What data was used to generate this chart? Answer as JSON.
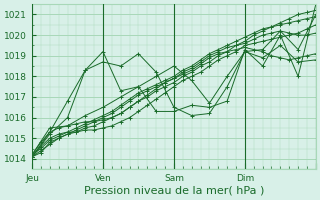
{
  "title": "",
  "xlabel": "Pression niveau de la mer( hPa )",
  "ylabel": "",
  "ylim": [
    1013.5,
    1021.5
  ],
  "xlim": [
    0,
    96
  ],
  "yticks": [
    1014,
    1015,
    1016,
    1017,
    1018,
    1019,
    1020,
    1021
  ],
  "xtick_positions": [
    0,
    24,
    48,
    72,
    96
  ],
  "xtick_labels": [
    "Jeu",
    "Ven",
    "Sam",
    "Dim",
    ""
  ],
  "bg_color": "#d8f0e8",
  "grid_color": "#a8d8b8",
  "line_color": "#1a6b2a",
  "marker_color": "#1a6b2a",
  "series": [
    {
      "x": [
        0,
        3,
        6,
        9,
        12,
        15,
        18,
        21,
        24,
        27,
        30,
        33,
        36,
        39,
        42,
        45,
        48,
        51,
        54,
        57,
        60,
        63,
        66,
        69,
        72,
        75,
        78,
        81,
        84,
        87,
        90,
        93,
        96
      ],
      "y": [
        1014.1,
        1014.3,
        1014.8,
        1015.0,
        1015.2,
        1015.3,
        1015.5,
        1015.6,
        1015.8,
        1016.0,
        1016.2,
        1016.5,
        1016.8,
        1017.0,
        1017.3,
        1017.5,
        1017.7,
        1018.0,
        1018.2,
        1018.5,
        1018.7,
        1019.0,
        1019.2,
        1019.5,
        1019.7,
        1020.0,
        1020.2,
        1020.4,
        1020.6,
        1020.8,
        1021.0,
        1021.1,
        1021.2
      ]
    },
    {
      "x": [
        0,
        3,
        6,
        9,
        12,
        15,
        18,
        21,
        24,
        27,
        30,
        33,
        36,
        39,
        42,
        45,
        48,
        51,
        54,
        57,
        60,
        63,
        66,
        69,
        72,
        75,
        78,
        81,
        84,
        87,
        90,
        93,
        96
      ],
      "y": [
        1014.2,
        1014.5,
        1014.9,
        1015.1,
        1015.3,
        1015.5,
        1015.7,
        1015.9,
        1016.1,
        1016.3,
        1016.6,
        1016.9,
        1017.2,
        1017.4,
        1017.6,
        1017.8,
        1018.0,
        1018.3,
        1018.5,
        1018.8,
        1019.1,
        1019.3,
        1019.5,
        1019.7,
        1019.9,
        1020.1,
        1020.3,
        1020.4,
        1020.5,
        1020.6,
        1020.7,
        1020.8,
        1020.9
      ]
    },
    {
      "x": [
        0,
        3,
        6,
        9,
        12,
        15,
        18,
        21,
        24,
        27,
        30,
        33,
        36,
        39,
        42,
        45,
        48,
        51,
        54,
        57,
        60,
        63,
        66,
        69,
        72,
        75,
        78,
        81,
        84,
        87,
        90,
        93,
        96
      ],
      "y": [
        1014.1,
        1014.4,
        1014.7,
        1015.0,
        1015.2,
        1015.4,
        1015.6,
        1015.8,
        1016.0,
        1016.2,
        1016.5,
        1016.8,
        1017.1,
        1017.3,
        1017.5,
        1017.7,
        1017.9,
        1018.2,
        1018.4,
        1018.7,
        1019.0,
        1019.2,
        1019.4,
        1019.5,
        1019.6,
        1019.8,
        1020.0,
        1020.1,
        1020.2,
        1020.1,
        1020.0,
        1020.0,
        1020.1
      ]
    },
    {
      "x": [
        0,
        3,
        6,
        9,
        12,
        15,
        18,
        21,
        24,
        27,
        30,
        33,
        36,
        39,
        42,
        45,
        48,
        51,
        54,
        57,
        60,
        63,
        66,
        69,
        72,
        75,
        78,
        81,
        84,
        87,
        90,
        93,
        96
      ],
      "y": [
        1014.1,
        1014.6,
        1015.0,
        1015.2,
        1015.3,
        1015.3,
        1015.4,
        1015.4,
        1015.5,
        1015.6,
        1015.8,
        1016.0,
        1016.3,
        1016.6,
        1016.9,
        1017.2,
        1017.5,
        1017.8,
        1018.0,
        1018.2,
        1018.5,
        1018.8,
        1019.0,
        1019.2,
        1019.5,
        1019.6,
        1019.7,
        1019.8,
        1019.9,
        1020.0,
        1020.1,
        1020.3,
        1020.5
      ]
    },
    {
      "x": [
        0,
        3,
        6,
        9,
        12,
        15,
        18,
        21,
        24,
        27,
        30,
        33,
        36,
        39,
        42,
        45,
        48,
        51,
        54,
        57,
        60,
        63,
        66,
        69,
        72,
        75,
        78,
        81,
        84,
        87,
        90,
        93,
        96
      ],
      "y": [
        1014.2,
        1014.8,
        1015.3,
        1015.5,
        1015.6,
        1015.7,
        1015.8,
        1015.8,
        1015.9,
        1016.0,
        1016.2,
        1016.5,
        1016.8,
        1017.1,
        1017.4,
        1017.7,
        1017.9,
        1018.1,
        1018.3,
        1018.6,
        1018.9,
        1019.1,
        1019.2,
        1019.3,
        1019.4,
        1019.3,
        1019.2,
        1019.0,
        1018.9,
        1018.8,
        1018.9,
        1019.0,
        1019.1
      ]
    },
    {
      "x": [
        0,
        6,
        12,
        18,
        24,
        30,
        36,
        42,
        48,
        54,
        60,
        66,
        72,
        78,
        84,
        90,
        96
      ],
      "y": [
        1014.2,
        1015.5,
        1015.6,
        1016.1,
        1016.5,
        1017.0,
        1017.5,
        1018.0,
        1018.5,
        1017.8,
        1016.7,
        1018.0,
        1019.2,
        1018.9,
        1019.5,
        1018.7,
        1018.8
      ]
    },
    {
      "x": [
        0,
        6,
        12,
        18,
        24,
        30,
        36,
        42,
        48,
        54,
        60,
        66,
        72,
        78,
        84,
        90,
        96
      ],
      "y": [
        1014.1,
        1015.2,
        1016.0,
        1018.3,
        1018.7,
        1018.5,
        1019.1,
        1018.2,
        1016.5,
        1016.1,
        1016.2,
        1017.5,
        1019.2,
        1019.3,
        1020.2,
        1019.3,
        1021.0
      ]
    },
    {
      "x": [
        0,
        6,
        12,
        18,
        24,
        30,
        36,
        42,
        48,
        54,
        60,
        66,
        72,
        78,
        84,
        90,
        96
      ],
      "y": [
        1014.1,
        1015.3,
        1016.8,
        1018.3,
        1019.2,
        1017.3,
        1017.5,
        1016.3,
        1016.3,
        1016.6,
        1016.5,
        1016.8,
        1019.3,
        1018.5,
        1020.0,
        1018.0,
        1021.5
      ]
    }
  ],
  "minor_xtick_interval": 3,
  "tick_label_fontsize": 6.5,
  "xlabel_fontsize": 8
}
